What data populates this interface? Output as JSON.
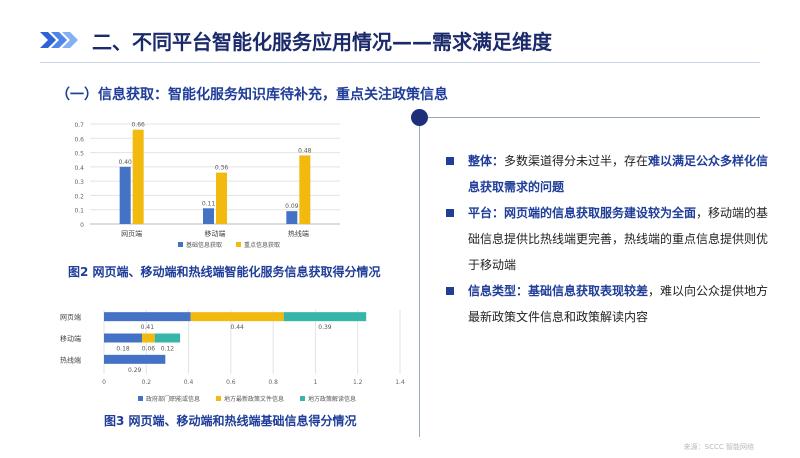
{
  "header": {
    "title": "二、不同平台智能化服务应用情况——需求满足维度",
    "subtitle": "（一）信息获取：智能化服务知识库待补充，重点关注政策信息"
  },
  "bullets": [
    {
      "keyword": "整体：",
      "text": "多数渠道得分未过半，存在",
      "emph": "难以满足公众多样化信息获取需求的问题",
      "tail": ""
    },
    {
      "keyword": "平台：",
      "text": "",
      "emph": "网页端的信息获取服务建设较为全面",
      "tail": "，移动端的基础信息提供比热线端更完善，热线端的重点信息提供则优于移动端"
    },
    {
      "keyword": "信息类型：",
      "text": "",
      "emph": "基础信息获取表现较差",
      "tail": "，难以向公众提供地方最新政策文件信息和政策解读内容"
    }
  ],
  "watermark": "来源：SCCC 智能网络",
  "colors": {
    "blue": "#4472C4",
    "yellow": "#F2B90F",
    "teal": "#36B5A8",
    "accent": "#1f3d99"
  },
  "chart_data": [
    {
      "type": "bar",
      "caption": "图2 网页端、移动端和热线端智能化服务信息获取得分情况",
      "categories": [
        "网页端",
        "移动端",
        "热线端"
      ],
      "series": [
        {
          "name": "基础信息获取",
          "values": [
            0.4,
            0.11,
            0.09
          ],
          "color": "#4472C4"
        },
        {
          "name": "重点信息获取",
          "values": [
            0.66,
            0.36,
            0.48
          ],
          "color": "#F2B90F"
        }
      ],
      "ylim": [
        0,
        0.7
      ],
      "yticks": [
        "0",
        "0.1",
        "0.2",
        "0.3",
        "0.4",
        "0.5",
        "0.6",
        "0.7"
      ],
      "value_labels": [
        [
          "0.40",
          "0.11",
          "0.09"
        ],
        [
          "0.66",
          "0.36",
          "0.48"
        ]
      ],
      "legend": "bottom",
      "grid": true
    },
    {
      "type": "bar",
      "orientation": "horizontal-stacked",
      "caption": "图3 网页端、移动端和热线端基础信息得分情况",
      "categories": [
        "网页端",
        "移动端",
        "热线端"
      ],
      "series": [
        {
          "name": "政府部门职能或信息",
          "values": [
            0.41,
            0.18,
            0.29
          ],
          "color": "#4472C4"
        },
        {
          "name": "地方最新政策文件信息",
          "values": [
            0.44,
            0.06,
            0
          ],
          "color": "#F2B90F"
        },
        {
          "name": "地方政策解读信息",
          "values": [
            0.39,
            0.12,
            0
          ],
          "color": "#36B5A8"
        }
      ],
      "value_labels": [
        [
          "0.41",
          "0.18",
          "0.29"
        ],
        [
          "0.44",
          "0.06",
          ""
        ],
        [
          "0.39",
          "0.12",
          ""
        ]
      ],
      "xlim": [
        0,
        1.4
      ],
      "xticks": [
        "0",
        "0.2",
        "0.4",
        "0.6",
        "0.8",
        "1",
        "1.2",
        "1.4"
      ],
      "legend": "bottom",
      "grid": true
    }
  ]
}
